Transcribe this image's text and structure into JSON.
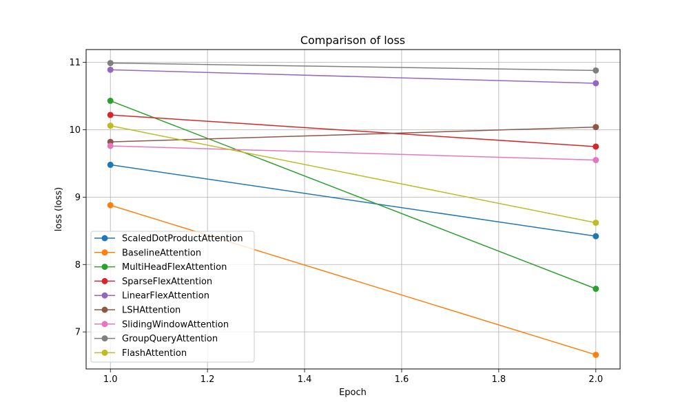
{
  "chart_data": {
    "type": "line",
    "title": "Comparison of loss",
    "xlabel": "Epoch",
    "ylabel": "loss (loss)",
    "x": [
      1.0,
      2.0
    ],
    "xlim": [
      0.95,
      2.05
    ],
    "ylim": [
      6.45,
      11.19
    ],
    "xticks": [
      1.0,
      1.2,
      1.4,
      1.6,
      1.8,
      2.0
    ],
    "xtick_labels": [
      "1.0",
      "1.2",
      "1.4",
      "1.6",
      "1.8",
      "2.0"
    ],
    "yticks": [
      7,
      8,
      9,
      10,
      11
    ],
    "ytick_labels": [
      "7",
      "8",
      "9",
      "10",
      "11"
    ],
    "grid": true,
    "legend_position": "lower-left",
    "marker": "circle",
    "series": [
      {
        "name": "ScaledDotProductAttention",
        "color": "#1f77b4",
        "values": [
          9.48,
          8.42
        ]
      },
      {
        "name": "BaselineAttention",
        "color": "#ff7f0e",
        "values": [
          8.88,
          6.66
        ]
      },
      {
        "name": "MultiHeadFlexAttention",
        "color": "#2ca02c",
        "values": [
          10.43,
          7.64
        ]
      },
      {
        "name": "SparseFlexAttention",
        "color": "#d62728",
        "values": [
          10.22,
          9.75
        ]
      },
      {
        "name": "LinearFlexAttention",
        "color": "#9467bd",
        "values": [
          10.89,
          10.69
        ]
      },
      {
        "name": "LSHAttention",
        "color": "#8c564b",
        "values": [
          9.82,
          10.04
        ]
      },
      {
        "name": "SlidingWindowAttention",
        "color": "#e377c2",
        "values": [
          9.76,
          9.55
        ]
      },
      {
        "name": "GroupQueryAttention",
        "color": "#7f7f7f",
        "values": [
          10.99,
          10.88
        ]
      },
      {
        "name": "FlashAttention",
        "color": "#bcbd22",
        "values": [
          10.06,
          8.62
        ]
      }
    ]
  }
}
